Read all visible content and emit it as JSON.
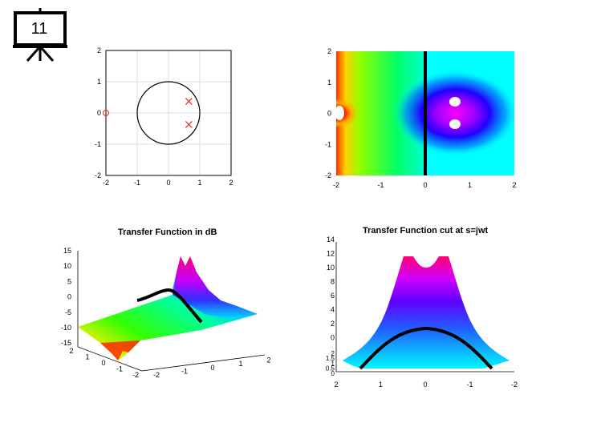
{
  "slide": {
    "number": "11"
  },
  "plots": {
    "pz_map": {
      "x_ticks": [
        "-2",
        "-1",
        "0",
        "1",
        "2"
      ],
      "y_ticks": [
        "2",
        "1",
        "0",
        "-1",
        "-2"
      ],
      "poles": [
        {
          "re": 0.65,
          "im": 0.37
        },
        {
          "re": 0.65,
          "im": -0.37
        }
      ],
      "zeros": [
        {
          "re": -2.0,
          "im": 0.0
        }
      ],
      "pole_color": "#e8262d",
      "zero_color": "#e8262d"
    },
    "phase_map": {
      "x_ticks": [
        "-2",
        "-1",
        "0",
        "1",
        "2"
      ],
      "y_ticks": [
        "2",
        "1",
        "0",
        "-1",
        "-2"
      ]
    },
    "surface_db": {
      "title": "Transfer Function in dB",
      "z_ticks": [
        "15",
        "10",
        "5",
        "0",
        "-5",
        "-10",
        "-15"
      ],
      "y_ticks": [
        "2",
        "1",
        "0",
        "-1",
        "-2"
      ],
      "x_ticks": [
        "-2",
        "-1",
        "0",
        "1",
        "2"
      ]
    },
    "surface_cut": {
      "title": "Transfer Function cut at s=jwt",
      "z_ticks": [
        "14",
        "12",
        "10",
        "8",
        "6",
        "4",
        "2",
        "0"
      ],
      "z_ticks_small": [
        "2",
        "1.5",
        "1",
        "0.5",
        "0"
      ],
      "x_ticks": [
        "2",
        "1",
        "0",
        "-1",
        "-2"
      ]
    }
  }
}
